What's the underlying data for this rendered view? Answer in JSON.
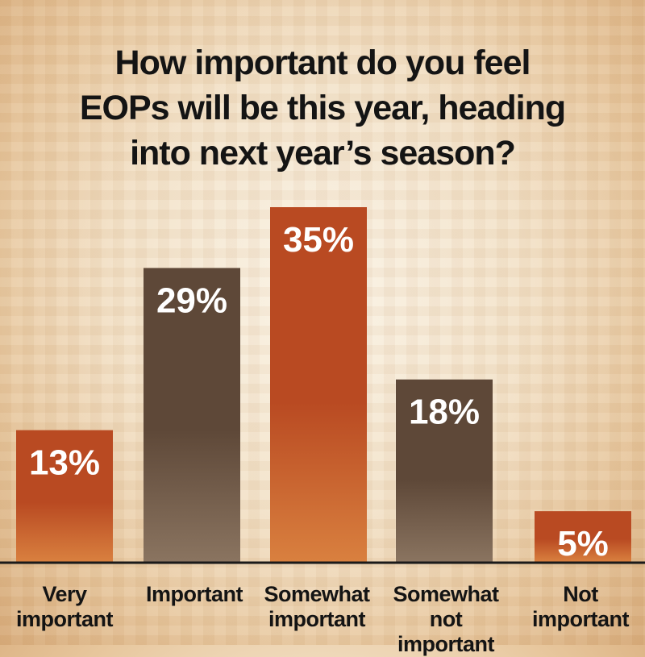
{
  "chart_data": {
    "type": "bar",
    "title_lines": [
      "How important do you feel",
      "EOPs will be this year, heading",
      "into next year’s season?"
    ],
    "categories": [
      [
        "Very",
        "important"
      ],
      [
        "Important"
      ],
      [
        "Somewhat",
        "important"
      ],
      [
        "Somewhat  not",
        "important"
      ],
      [
        "Not",
        "important"
      ]
    ],
    "values": [
      13,
      29,
      35,
      18,
      5
    ],
    "value_labels": [
      "13%",
      "29%",
      "35%",
      "18%",
      "5%"
    ],
    "ylim": [
      0,
      40
    ],
    "grid": false,
    "legend": "none",
    "colors": {
      "orange": "#b94a22",
      "brown": "#5e4838",
      "bar_pattern": [
        "orange",
        "brown",
        "orange",
        "brown",
        "orange"
      ],
      "baseline": "#1a1a1a"
    }
  }
}
